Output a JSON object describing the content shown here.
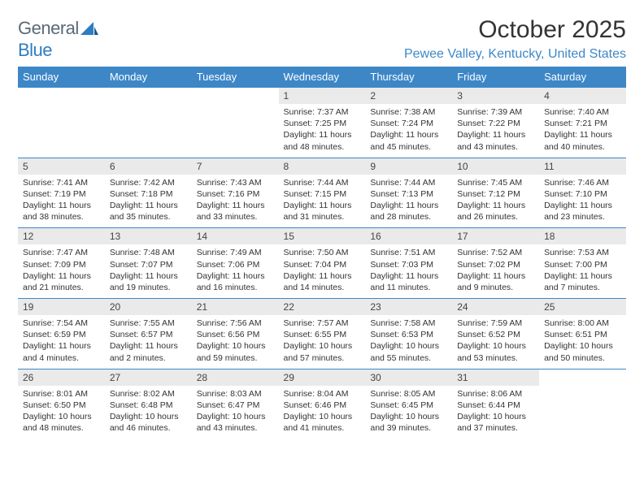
{
  "logo": {
    "text1": "General",
    "text2": "Blue"
  },
  "title": "October 2025",
  "location": "Pewee Valley, Kentucky, United States",
  "colors": {
    "header_bg": "#3d87c7",
    "header_text": "#ffffff",
    "daynum_bg": "#eaeaea",
    "border": "#3d87c7",
    "logo_gray": "#5a6a78",
    "logo_blue": "#2d7dc1"
  },
  "weekdays": [
    "Sunday",
    "Monday",
    "Tuesday",
    "Wednesday",
    "Thursday",
    "Friday",
    "Saturday"
  ],
  "weeks": [
    {
      "nums": [
        "",
        "",
        "",
        "1",
        "2",
        "3",
        "4"
      ],
      "cells": [
        "",
        "",
        "",
        "Sunrise: 7:37 AM\nSunset: 7:25 PM\nDaylight: 11 hours and 48 minutes.",
        "Sunrise: 7:38 AM\nSunset: 7:24 PM\nDaylight: 11 hours and 45 minutes.",
        "Sunrise: 7:39 AM\nSunset: 7:22 PM\nDaylight: 11 hours and 43 minutes.",
        "Sunrise: 7:40 AM\nSunset: 7:21 PM\nDaylight: 11 hours and 40 minutes."
      ]
    },
    {
      "nums": [
        "5",
        "6",
        "7",
        "8",
        "9",
        "10",
        "11"
      ],
      "cells": [
        "Sunrise: 7:41 AM\nSunset: 7:19 PM\nDaylight: 11 hours and 38 minutes.",
        "Sunrise: 7:42 AM\nSunset: 7:18 PM\nDaylight: 11 hours and 35 minutes.",
        "Sunrise: 7:43 AM\nSunset: 7:16 PM\nDaylight: 11 hours and 33 minutes.",
        "Sunrise: 7:44 AM\nSunset: 7:15 PM\nDaylight: 11 hours and 31 minutes.",
        "Sunrise: 7:44 AM\nSunset: 7:13 PM\nDaylight: 11 hours and 28 minutes.",
        "Sunrise: 7:45 AM\nSunset: 7:12 PM\nDaylight: 11 hours and 26 minutes.",
        "Sunrise: 7:46 AM\nSunset: 7:10 PM\nDaylight: 11 hours and 23 minutes."
      ]
    },
    {
      "nums": [
        "12",
        "13",
        "14",
        "15",
        "16",
        "17",
        "18"
      ],
      "cells": [
        "Sunrise: 7:47 AM\nSunset: 7:09 PM\nDaylight: 11 hours and 21 minutes.",
        "Sunrise: 7:48 AM\nSunset: 7:07 PM\nDaylight: 11 hours and 19 minutes.",
        "Sunrise: 7:49 AM\nSunset: 7:06 PM\nDaylight: 11 hours and 16 minutes.",
        "Sunrise: 7:50 AM\nSunset: 7:04 PM\nDaylight: 11 hours and 14 minutes.",
        "Sunrise: 7:51 AM\nSunset: 7:03 PM\nDaylight: 11 hours and 11 minutes.",
        "Sunrise: 7:52 AM\nSunset: 7:02 PM\nDaylight: 11 hours and 9 minutes.",
        "Sunrise: 7:53 AM\nSunset: 7:00 PM\nDaylight: 11 hours and 7 minutes."
      ]
    },
    {
      "nums": [
        "19",
        "20",
        "21",
        "22",
        "23",
        "24",
        "25"
      ],
      "cells": [
        "Sunrise: 7:54 AM\nSunset: 6:59 PM\nDaylight: 11 hours and 4 minutes.",
        "Sunrise: 7:55 AM\nSunset: 6:57 PM\nDaylight: 11 hours and 2 minutes.",
        "Sunrise: 7:56 AM\nSunset: 6:56 PM\nDaylight: 10 hours and 59 minutes.",
        "Sunrise: 7:57 AM\nSunset: 6:55 PM\nDaylight: 10 hours and 57 minutes.",
        "Sunrise: 7:58 AM\nSunset: 6:53 PM\nDaylight: 10 hours and 55 minutes.",
        "Sunrise: 7:59 AM\nSunset: 6:52 PM\nDaylight: 10 hours and 53 minutes.",
        "Sunrise: 8:00 AM\nSunset: 6:51 PM\nDaylight: 10 hours and 50 minutes."
      ]
    },
    {
      "nums": [
        "26",
        "27",
        "28",
        "29",
        "30",
        "31",
        ""
      ],
      "cells": [
        "Sunrise: 8:01 AM\nSunset: 6:50 PM\nDaylight: 10 hours and 48 minutes.",
        "Sunrise: 8:02 AM\nSunset: 6:48 PM\nDaylight: 10 hours and 46 minutes.",
        "Sunrise: 8:03 AM\nSunset: 6:47 PM\nDaylight: 10 hours and 43 minutes.",
        "Sunrise: 8:04 AM\nSunset: 6:46 PM\nDaylight: 10 hours and 41 minutes.",
        "Sunrise: 8:05 AM\nSunset: 6:45 PM\nDaylight: 10 hours and 39 minutes.",
        "Sunrise: 8:06 AM\nSunset: 6:44 PM\nDaylight: 10 hours and 37 minutes.",
        ""
      ]
    }
  ]
}
